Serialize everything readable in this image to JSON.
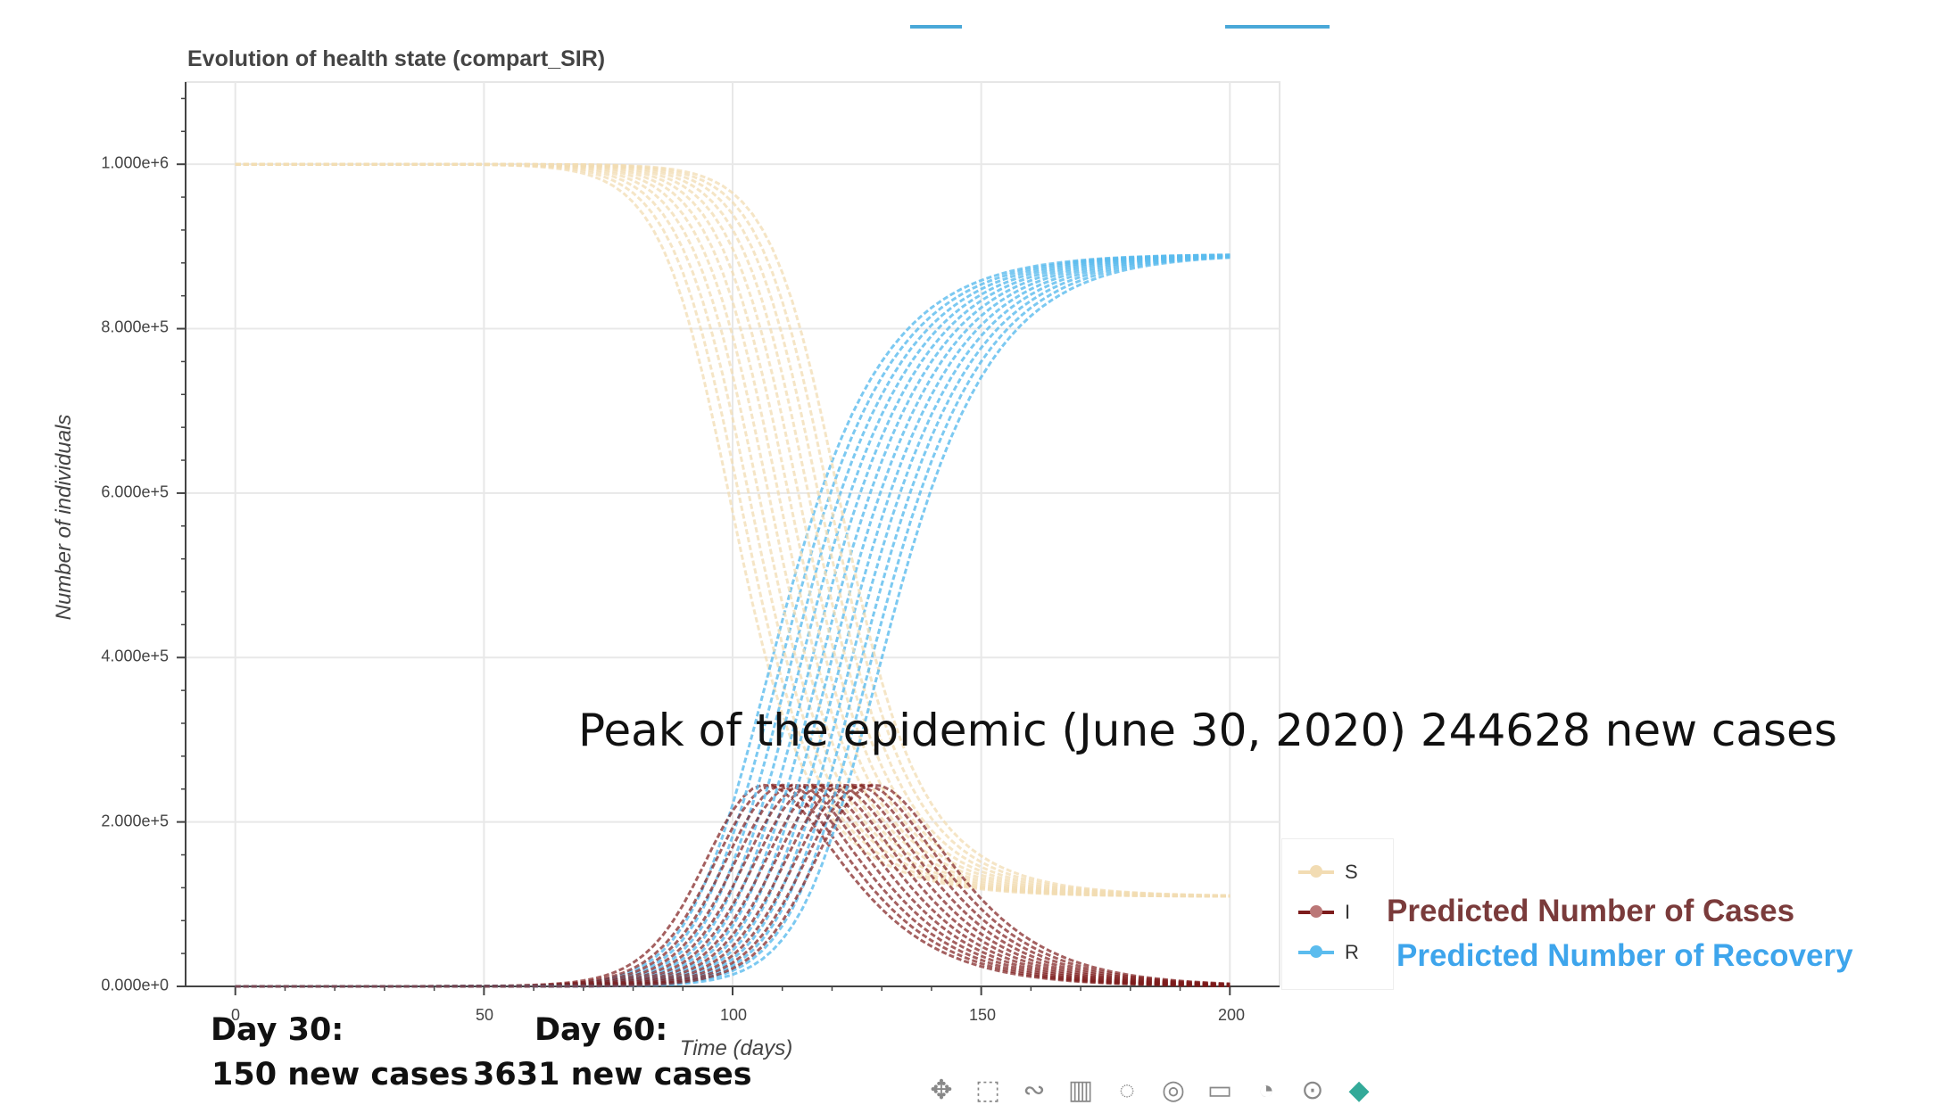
{
  "chart_data": {
    "type": "line",
    "title": "Evolution of health state (compart_SIR)",
    "xlabel": "Time (days)",
    "ylabel": "Number of individuals",
    "xlim": [
      -10,
      210
    ],
    "ylim": [
      0,
      1100000
    ],
    "xticks": [
      0,
      50,
      100,
      150,
      200
    ],
    "x_tick_labels": [
      "0",
      "50",
      "100",
      "150",
      "200"
    ],
    "yticks": [
      0,
      200000,
      400000,
      600000,
      800000,
      1000000
    ],
    "y_tick_labels": [
      "0.000e+0",
      "2.000e+5",
      "4.000e+5",
      "6.000e+5",
      "8.000e+5",
      "1.000e+6"
    ],
    "grid": true,
    "legend_position": "right",
    "population": 1000000,
    "recovered_final": 890000,
    "ensemble_peak_days": [
      106,
      108,
      110,
      112,
      114,
      116,
      118,
      120,
      122,
      124,
      126,
      128
    ],
    "series": [
      {
        "name": "S",
        "color": "#f2dcb3",
        "peak_infected": 0
      },
      {
        "name": "I",
        "color": "#7d1c1c",
        "peak_infected": 245000
      },
      {
        "name": "R",
        "color": "#5bbcee",
        "peak_infected": 0
      }
    ],
    "annotations": {
      "peak": "Peak of the epidemic (June 30, 2020) 244628 new cases",
      "day30_title": "Day 30:",
      "day30_value": "150 new cases",
      "day60_title": "Day 60:",
      "day60_value": "3631 new cases",
      "cases_label": "Predicted Number of Cases",
      "recovery_label": "Predicted Number of Recovery"
    }
  },
  "colors": {
    "susceptible": "#f2dcb3",
    "infected": "#7d1c1c",
    "recovered": "#5bbcee",
    "cases_annotation": "#7a3b3b",
    "recovery_annotation": "#3ea5ec"
  },
  "toolbar_icons": [
    "pan-icon",
    "box-zoom-icon",
    "lasso-icon",
    "wheel-zoom-icon",
    "tap-icon",
    "crosshair-icon",
    "reset-icon",
    "hover-icon",
    "help-icon",
    "bokeh-logo-icon"
  ]
}
